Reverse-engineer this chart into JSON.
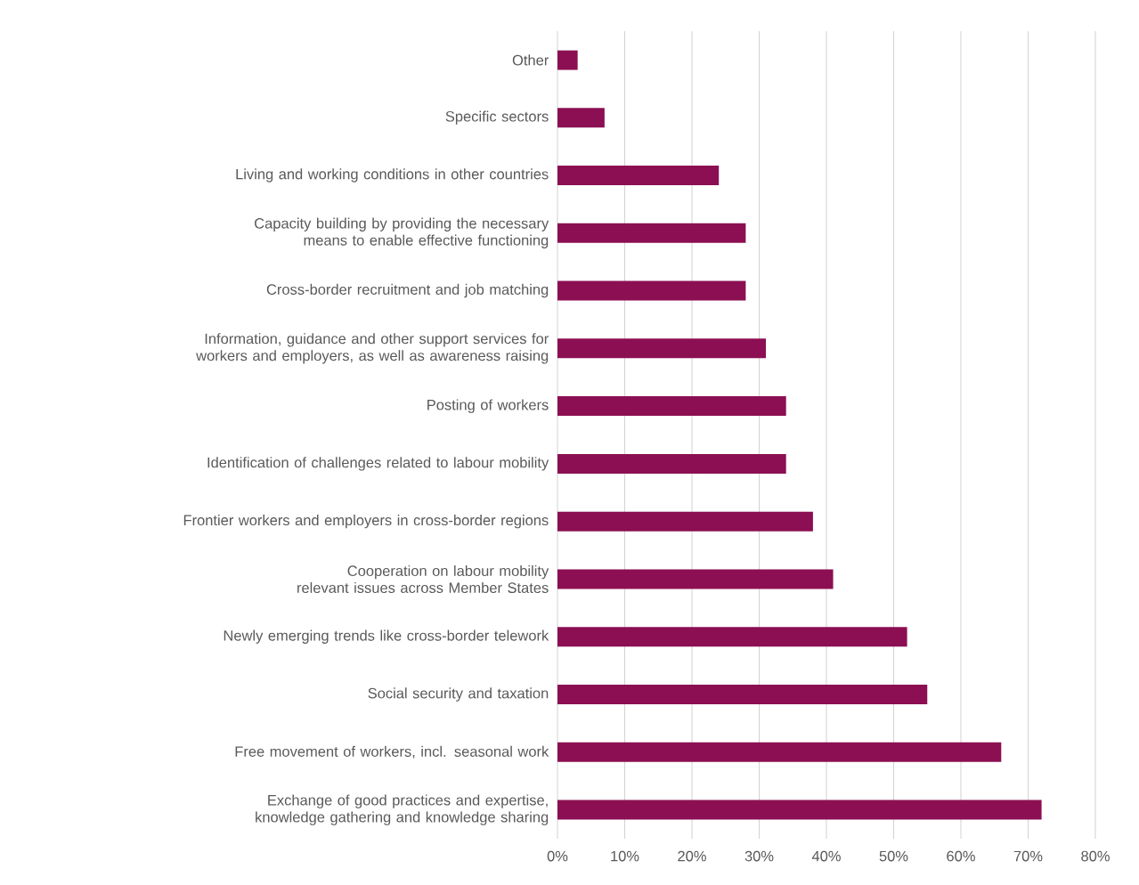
{
  "chart_data": {
    "type": "bar",
    "orientation": "horizontal",
    "categories": [
      "Other",
      "Specific sectors",
      "Living and working conditions in other countries",
      "Capacity building by providing the necessary means to enable effective functioning",
      "Cross-border recruitment and job matching",
      "Information, guidance and other support services for workers and employers, as well as awareness raising",
      "Posting of workers",
      "Identification of challenges related to labour mobility",
      "Frontier workers and employers in cross-border regions",
      "Cooperation on labour mobility relevant issues across Member States",
      "Newly emerging trends like cross-border telework",
      "Social security and taxation",
      "Free movement of workers, incl. seasonal work",
      "Exchange of good practices and expertise, knowledge gathering and knowledge sharing"
    ],
    "values": [
      3,
      7,
      24,
      28,
      28,
      31,
      34,
      34,
      38,
      41,
      52,
      55,
      66,
      72
    ],
    "color": "#8b0f52",
    "xlim": [
      0,
      80
    ],
    "xticks": [
      {
        "value": 0,
        "label": "0%"
      },
      {
        "value": 10,
        "label": "10%"
      },
      {
        "value": 20,
        "label": "20%"
      },
      {
        "value": 30,
        "label": "30%"
      },
      {
        "value": 40,
        "label": "40%"
      },
      {
        "value": 50,
        "label": "50%"
      },
      {
        "value": 60,
        "label": "60%"
      },
      {
        "value": 70,
        "label": "70%"
      },
      {
        "value": 80,
        "label": "80%"
      }
    ],
    "grid": "x"
  }
}
